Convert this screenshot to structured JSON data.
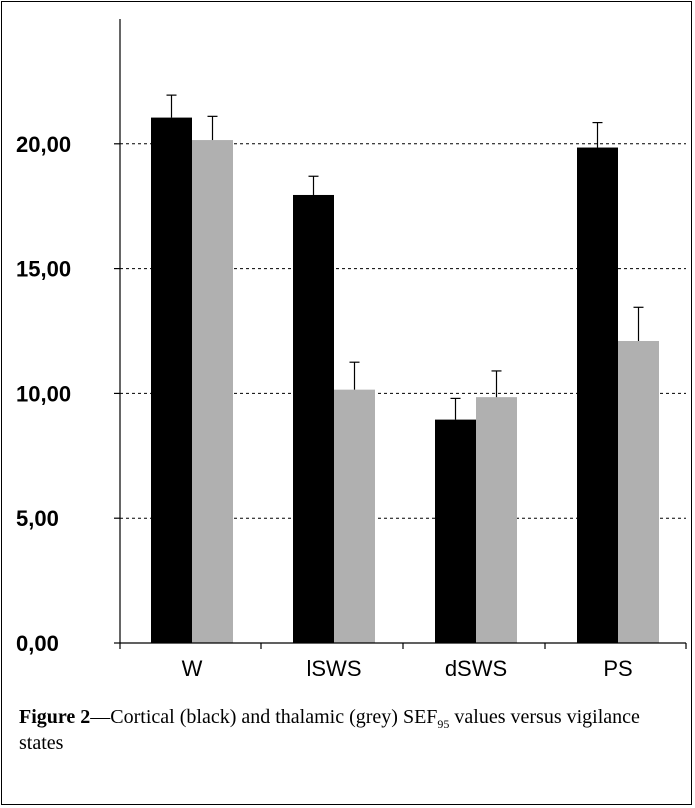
{
  "chart_data": {
    "type": "bar",
    "categories": [
      "W",
      "lSWS",
      "dSWS",
      "PS"
    ],
    "series": [
      {
        "color": "#000000",
        "values": [
          21.05,
          17.95,
          8.95,
          19.85
        ],
        "errors": [
          0.9,
          0.75,
          0.85,
          1.0
        ]
      },
      {
        "color": "#b0b0b0",
        "values": [
          20.15,
          10.15,
          9.85,
          12.1
        ],
        "errors": [
          0.95,
          1.1,
          1.05,
          1.35
        ]
      }
    ],
    "ylim": [
      0,
      25
    ],
    "yticks": [
      0,
      5,
      10,
      15,
      20
    ],
    "ytick_labels": [
      "0,00",
      "5,00",
      "10,00",
      "15,00",
      "20,00"
    ],
    "grid": "dashed horizontal"
  },
  "caption": {
    "label": "Figure 2",
    "text_pre": "—Cortical (black) and thalamic (grey) SEF",
    "subscript": "95",
    "text_post": " values versus vigilance states"
  }
}
